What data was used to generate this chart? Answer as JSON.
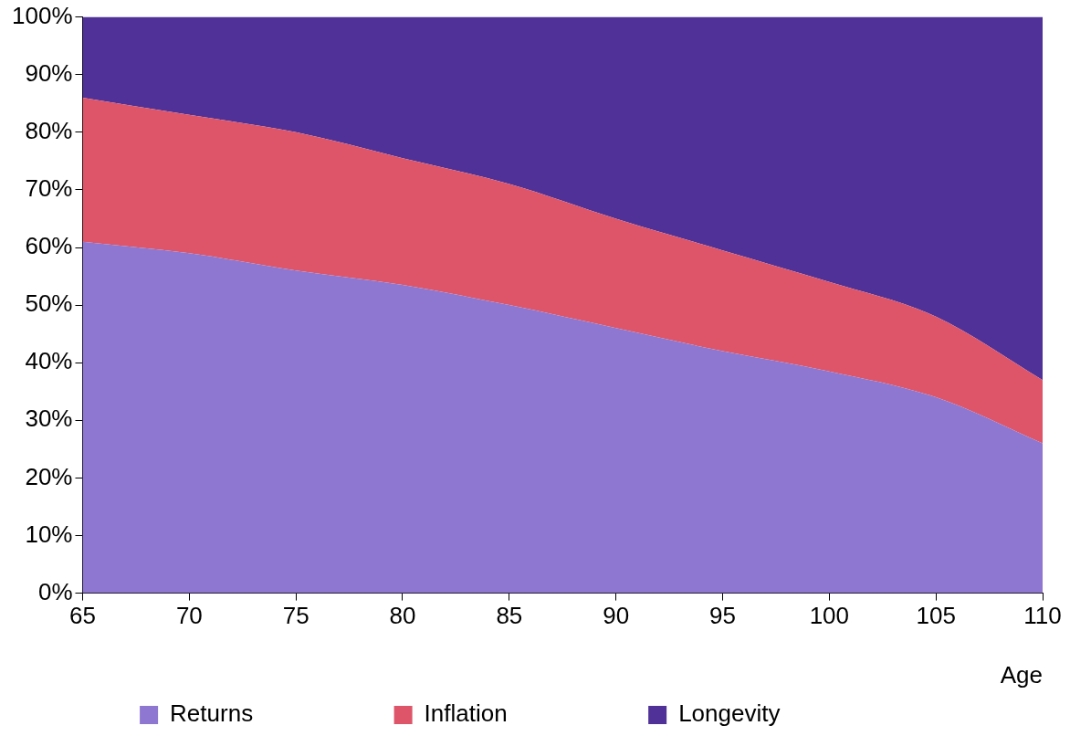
{
  "chart_data": {
    "type": "area",
    "stacked": true,
    "xlabel": "Age",
    "x": [
      65,
      70,
      75,
      80,
      85,
      90,
      95,
      100,
      105,
      110
    ],
    "series": [
      {
        "name": "Returns",
        "color": "#8e77d1",
        "values": [
          61,
          59,
          56,
          53.5,
          50,
          46,
          42,
          38.5,
          34,
          26
        ]
      },
      {
        "name": "Inflation",
        "color": "#de5468",
        "values": [
          25,
          24,
          24,
          22,
          21,
          19,
          17.5,
          15.5,
          14,
          11
        ]
      },
      {
        "name": "Longevity",
        "color": "#4f3198",
        "values": [
          14,
          17,
          20,
          24.5,
          29,
          35,
          40.5,
          46,
          52,
          63
        ]
      }
    ],
    "xlim": [
      65,
      110
    ],
    "xticks": [
      65,
      70,
      75,
      80,
      85,
      90,
      95,
      100,
      105,
      110
    ],
    "ylim": [
      0,
      100
    ],
    "yticks": [
      {
        "value": 0,
        "label": "0%"
      },
      {
        "value": 10,
        "label": "10%"
      },
      {
        "value": 20,
        "label": "20%"
      },
      {
        "value": 30,
        "label": "30%"
      },
      {
        "value": 40,
        "label": "40%"
      },
      {
        "value": 50,
        "label": "50%"
      },
      {
        "value": 60,
        "label": "60%"
      },
      {
        "value": 70,
        "label": "70%"
      },
      {
        "value": 80,
        "label": "80%"
      },
      {
        "value": 90,
        "label": "90%"
      },
      {
        "value": 100,
        "label": "100%"
      }
    ],
    "legend": "bottom"
  }
}
